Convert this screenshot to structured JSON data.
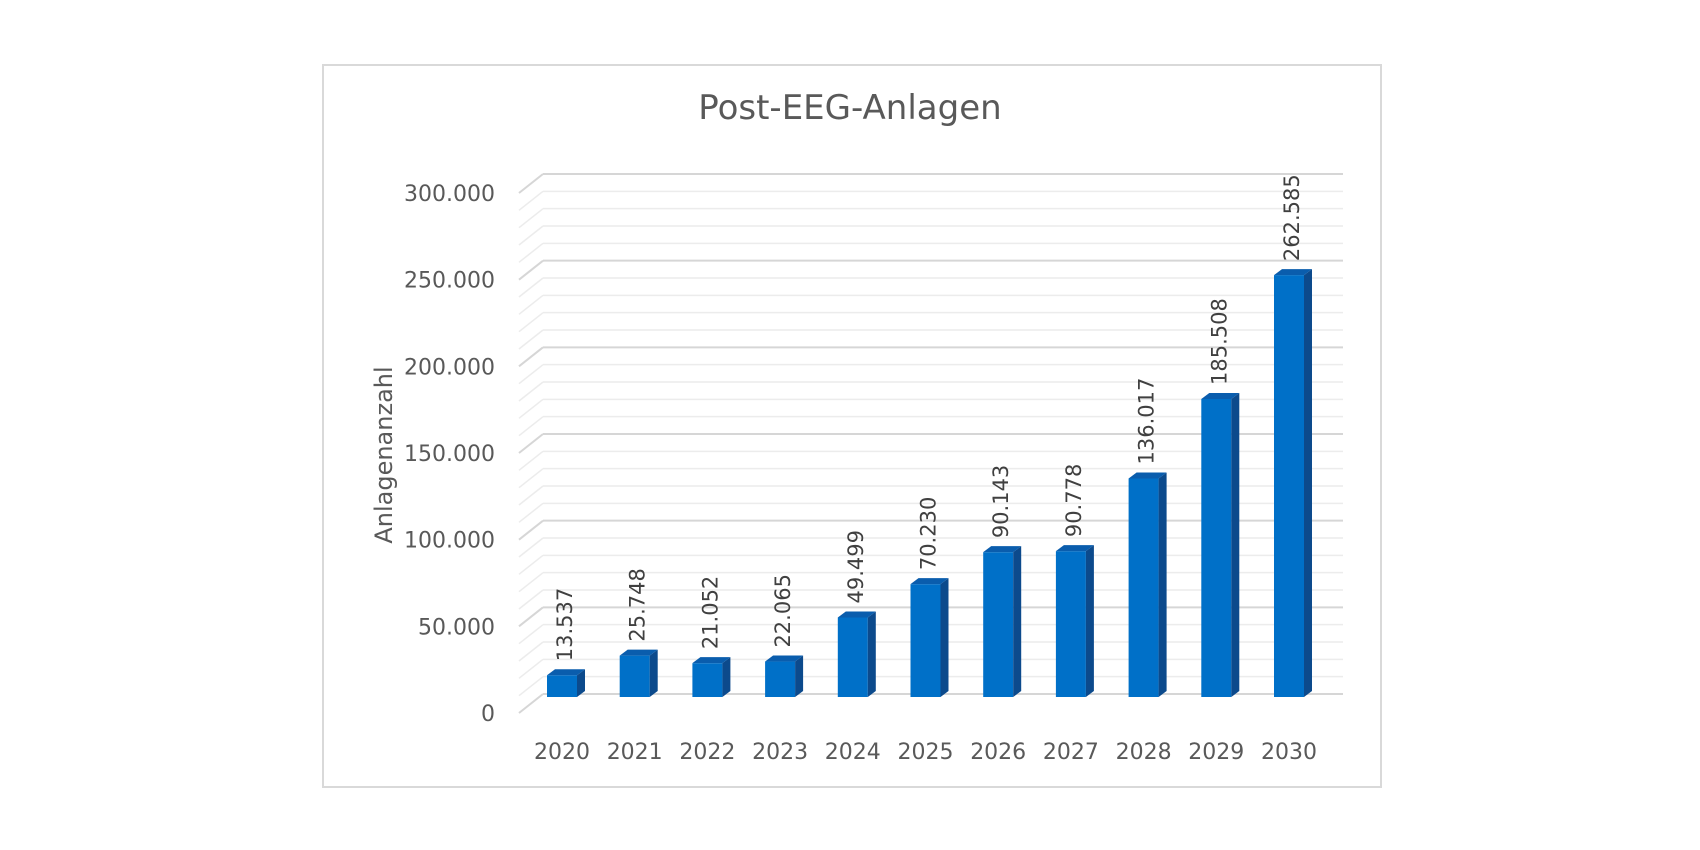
{
  "chart_data": {
    "type": "bar",
    "title": "Post-EEG-Anlagen",
    "xlabel": "",
    "ylabel": "Anlagenanzahl",
    "categories": [
      "2020",
      "2021",
      "2022",
      "2023",
      "2024",
      "2025",
      "2026",
      "2027",
      "2028",
      "2029",
      "2030"
    ],
    "values": [
      13537,
      25748,
      21052,
      22065,
      49499,
      70230,
      90143,
      90778,
      136017,
      185508,
      262585
    ],
    "value_labels": [
      "13.537",
      "25.748",
      "21.052",
      "22.065",
      "49.499",
      "70.230",
      "90.143",
      "90.778",
      "136.017",
      "185.508",
      "262.585"
    ],
    "ylim": [
      0,
      300000
    ],
    "yticks": [
      0,
      50000,
      100000,
      150000,
      200000,
      250000,
      300000
    ],
    "ytick_labels": [
      "0",
      "50.000",
      "100.000",
      "150.000",
      "200.000",
      "250.000",
      "300.000"
    ],
    "grid": true,
    "legend": "none",
    "colors": {
      "bar_front": "#0070C8",
      "bar_top": "#0A5DAD",
      "bar_side": "#0C4A8C",
      "grid_major": "#d6d6d6",
      "grid_minor": "#ececec",
      "text": "#595959"
    }
  }
}
